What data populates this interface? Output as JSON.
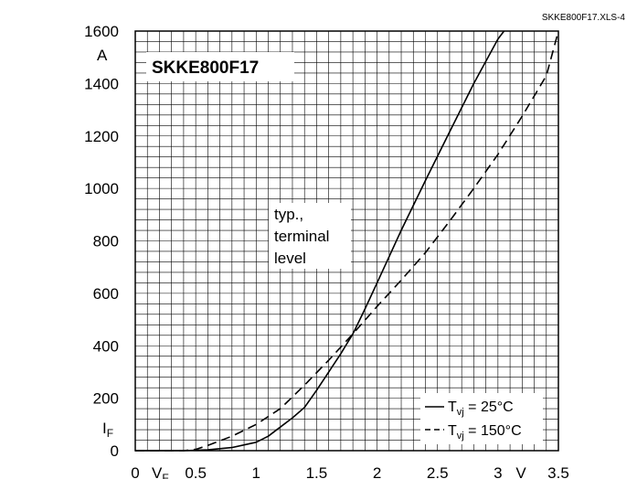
{
  "chart_data": {
    "type": "line",
    "source_label": "SKKE800F17.XLS-4",
    "title": "SKKE800F17",
    "xlabel": "V",
    "xlabel_sub": "F",
    "x_unit": "V",
    "ylabel": "I",
    "ylabel_sub": "F",
    "y_unit": "A",
    "xlim": [
      0,
      3.5
    ],
    "ylim": [
      0,
      1600
    ],
    "x_ticks": [
      0,
      0.5,
      1,
      1.5,
      2,
      2.5,
      3,
      3.5
    ],
    "x_tick_labels": [
      "0",
      "0.5",
      "1",
      "1.5",
      "2",
      "2.5",
      "3",
      "3.5"
    ],
    "y_ticks": [
      0,
      200,
      400,
      600,
      800,
      1000,
      1200,
      1400,
      1600
    ],
    "y_tick_labels": [
      "0",
      "200",
      "400",
      "600",
      "800",
      "1000",
      "1200",
      "1400",
      "1600"
    ],
    "grid": true,
    "annotation": [
      "typ.,",
      "terminal",
      "level"
    ],
    "legend_position": "bottom-right",
    "series": [
      {
        "name": "25°C",
        "legend_prefix": "T",
        "legend_sub": "vj",
        "legend_suffix": " = 25°C",
        "style": "solid",
        "x": [
          0,
          0.4,
          0.6,
          0.8,
          1.0,
          1.1,
          1.2,
          1.3,
          1.4,
          1.5,
          1.6,
          1.7,
          1.8,
          1.9,
          2.0,
          2.2,
          2.4,
          2.6,
          2.8,
          3.0,
          3.05
        ],
        "y": [
          0,
          0,
          3,
          12,
          32,
          55,
          90,
          125,
          165,
          230,
          300,
          370,
          445,
          540,
          640,
          840,
          1030,
          1215,
          1400,
          1570,
          1600
        ]
      },
      {
        "name": "150°C",
        "legend_prefix": "T",
        "legend_sub": "vj",
        "legend_suffix": " = 150°C",
        "style": "dashed",
        "x": [
          0,
          0.4,
          0.5,
          0.6,
          0.8,
          1.0,
          1.2,
          1.4,
          1.6,
          1.8,
          2.0,
          2.2,
          2.4,
          2.6,
          2.8,
          3.0,
          3.2,
          3.4,
          3.5
        ],
        "y": [
          0,
          0,
          5,
          20,
          55,
          100,
          160,
          250,
          345,
          445,
          550,
          650,
          755,
          875,
          1000,
          1130,
          1275,
          1430,
          1600
        ]
      }
    ]
  }
}
